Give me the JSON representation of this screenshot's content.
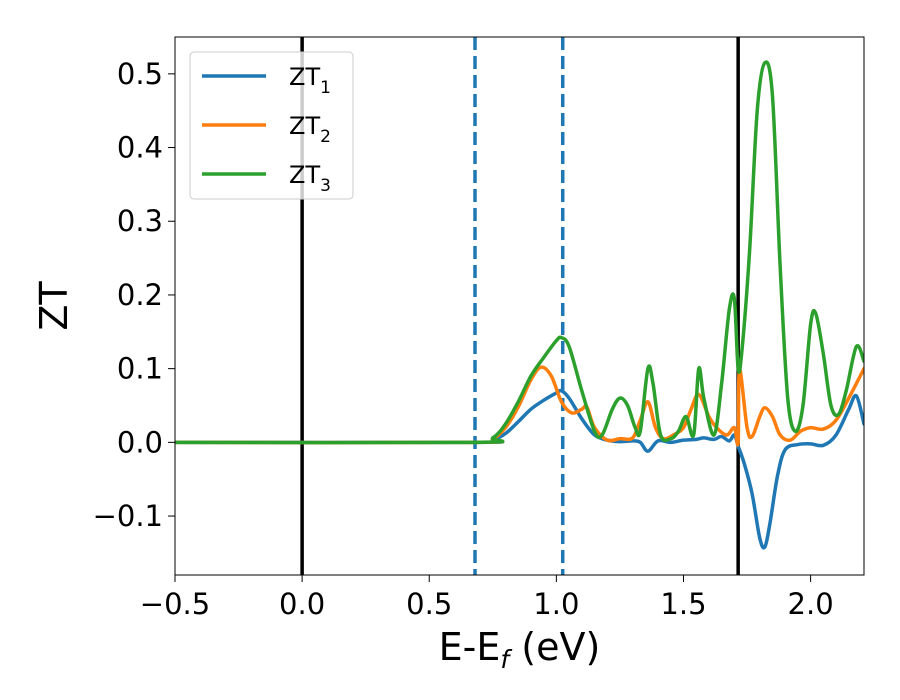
{
  "chart_data": {
    "type": "line",
    "xlabel_main": "E-E",
    "xlabel_sub": "f",
    "xlabel_unit": " (eV)",
    "ylabel": "ZT",
    "xlim": [
      -0.5,
      2.21
    ],
    "ylim": [
      -0.18,
      0.55
    ],
    "xticks": [
      {
        "value": -0.5,
        "label": "−0.5"
      },
      {
        "value": 0.0,
        "label": "0.0"
      },
      {
        "value": 0.5,
        "label": "0.5"
      },
      {
        "value": 1.0,
        "label": "1.0"
      },
      {
        "value": 1.5,
        "label": "1.5"
      },
      {
        "value": 2.0,
        "label": "2.0"
      }
    ],
    "yticks": [
      {
        "value": -0.1,
        "label": "−0.1"
      },
      {
        "value": 0.0,
        "label": "0.0"
      },
      {
        "value": 0.1,
        "label": "0.1"
      },
      {
        "value": 0.2,
        "label": "0.2"
      },
      {
        "value": 0.3,
        "label": "0.3"
      },
      {
        "value": 0.4,
        "label": "0.4"
      },
      {
        "value": 0.5,
        "label": "0.5"
      }
    ],
    "legend_position": "top-left",
    "vlines": [
      {
        "x": 0.0,
        "style": "solid",
        "color": "#000000"
      },
      {
        "x": 1.715,
        "style": "solid",
        "color": "#000000"
      },
      {
        "x": 0.68,
        "style": "dashed",
        "color": "#1f77b4"
      },
      {
        "x": 1.025,
        "style": "dashed",
        "color": "#1f77b4"
      }
    ],
    "series": [
      {
        "name": "ZT",
        "sub": "1",
        "color": "#1f77b4",
        "points": [
          [
            -0.5,
            0
          ],
          [
            0.68,
            0
          ],
          [
            0.75,
            0.003
          ],
          [
            0.8,
            0.012
          ],
          [
            0.85,
            0.028
          ],
          [
            0.9,
            0.045
          ],
          [
            0.95,
            0.057
          ],
          [
            1.0,
            0.067
          ],
          [
            1.02,
            0.07
          ],
          [
            1.05,
            0.06
          ],
          [
            1.1,
            0.032
          ],
          [
            1.15,
            0.01
          ],
          [
            1.2,
            0.003
          ],
          [
            1.25,
            0.001
          ],
          [
            1.3,
            0.002
          ],
          [
            1.33,
            0.0
          ],
          [
            1.36,
            -0.012
          ],
          [
            1.4,
            0.002
          ],
          [
            1.45,
            0.0
          ],
          [
            1.5,
            0.003
          ],
          [
            1.55,
            0.004
          ],
          [
            1.58,
            0.006
          ],
          [
            1.62,
            0.004
          ],
          [
            1.65,
            0.008
          ],
          [
            1.68,
            0.002
          ],
          [
            1.7,
            0.01
          ],
          [
            1.715,
            -0.005
          ],
          [
            1.74,
            -0.03
          ],
          [
            1.77,
            -0.07
          ],
          [
            1.8,
            -0.13
          ],
          [
            1.82,
            -0.142
          ],
          [
            1.84,
            -0.11
          ],
          [
            1.87,
            -0.045
          ],
          [
            1.9,
            -0.01
          ],
          [
            1.95,
            -0.003
          ],
          [
            2.0,
            -0.002
          ],
          [
            2.05,
            -0.004
          ],
          [
            2.1,
            0.01
          ],
          [
            2.15,
            0.045
          ],
          [
            2.18,
            0.063
          ],
          [
            2.21,
            0.025
          ]
        ]
      },
      {
        "name": "ZT",
        "sub": "2",
        "color": "#ff7f0e",
        "points": [
          [
            -0.5,
            0
          ],
          [
            0.68,
            0
          ],
          [
            0.75,
            0.005
          ],
          [
            0.8,
            0.02
          ],
          [
            0.85,
            0.048
          ],
          [
            0.9,
            0.085
          ],
          [
            0.94,
            0.102
          ],
          [
            0.98,
            0.09
          ],
          [
            1.02,
            0.055
          ],
          [
            1.06,
            0.04
          ],
          [
            1.1,
            0.045
          ],
          [
            1.12,
            0.048
          ],
          [
            1.15,
            0.02
          ],
          [
            1.2,
            0.003
          ],
          [
            1.25,
            0.005
          ],
          [
            1.3,
            0.006
          ],
          [
            1.33,
            0.03
          ],
          [
            1.36,
            0.055
          ],
          [
            1.39,
            0.02
          ],
          [
            1.42,
            0.005
          ],
          [
            1.46,
            0.01
          ],
          [
            1.5,
            0.02
          ],
          [
            1.53,
            0.045
          ],
          [
            1.56,
            0.065
          ],
          [
            1.6,
            0.035
          ],
          [
            1.63,
            0.02
          ],
          [
            1.67,
            0.01
          ],
          [
            1.7,
            0.02
          ],
          [
            1.715,
            0.0
          ],
          [
            1.72,
            0.1
          ],
          [
            1.75,
            0.02
          ],
          [
            1.77,
            0.008
          ],
          [
            1.8,
            0.035
          ],
          [
            1.82,
            0.047
          ],
          [
            1.85,
            0.035
          ],
          [
            1.88,
            0.01
          ],
          [
            1.92,
            0.003
          ],
          [
            1.96,
            0.015
          ],
          [
            2.0,
            0.02
          ],
          [
            2.05,
            0.018
          ],
          [
            2.1,
            0.03
          ],
          [
            2.15,
            0.06
          ],
          [
            2.21,
            0.1
          ]
        ]
      },
      {
        "name": "ZT",
        "sub": "3",
        "color": "#2ca02c",
        "points": [
          [
            -0.5,
            0
          ],
          [
            0.68,
            0
          ],
          [
            0.75,
            0.006
          ],
          [
            0.8,
            0.025
          ],
          [
            0.85,
            0.055
          ],
          [
            0.9,
            0.09
          ],
          [
            0.95,
            0.115
          ],
          [
            1.0,
            0.138
          ],
          [
            1.02,
            0.142
          ],
          [
            1.05,
            0.13
          ],
          [
            1.1,
            0.07
          ],
          [
            1.15,
            0.015
          ],
          [
            1.18,
            0.01
          ],
          [
            1.22,
            0.045
          ],
          [
            1.25,
            0.06
          ],
          [
            1.28,
            0.05
          ],
          [
            1.31,
            0.02
          ],
          [
            1.33,
            0.015
          ],
          [
            1.36,
            0.1
          ],
          [
            1.38,
            0.08
          ],
          [
            1.41,
            0.01
          ],
          [
            1.45,
            0.005
          ],
          [
            1.48,
            0.015
          ],
          [
            1.51,
            0.035
          ],
          [
            1.54,
            0.01
          ],
          [
            1.56,
            0.1
          ],
          [
            1.58,
            0.06
          ],
          [
            1.62,
            0.01
          ],
          [
            1.65,
            0.08
          ],
          [
            1.68,
            0.18
          ],
          [
            1.7,
            0.195
          ],
          [
            1.715,
            0.1
          ],
          [
            1.73,
            0.125
          ],
          [
            1.76,
            0.26
          ],
          [
            1.79,
            0.45
          ],
          [
            1.82,
            0.515
          ],
          [
            1.85,
            0.47
          ],
          [
            1.88,
            0.24
          ],
          [
            1.91,
            0.06
          ],
          [
            1.94,
            0.015
          ],
          [
            1.97,
            0.05
          ],
          [
            2.0,
            0.16
          ],
          [
            2.02,
            0.175
          ],
          [
            2.05,
            0.12
          ],
          [
            2.08,
            0.05
          ],
          [
            2.11,
            0.038
          ],
          [
            2.14,
            0.07
          ],
          [
            2.18,
            0.13
          ],
          [
            2.21,
            0.11
          ]
        ]
      }
    ]
  }
}
